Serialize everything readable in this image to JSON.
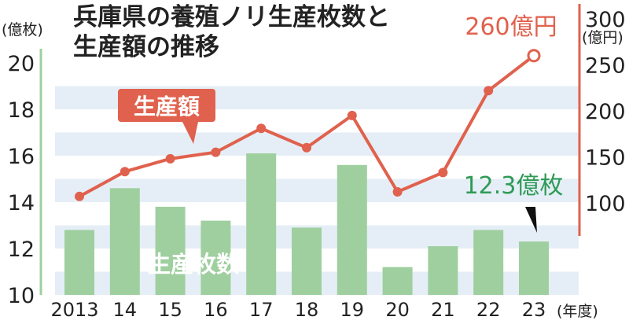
{
  "chart_data": {
    "type": "bar+line",
    "title_line1": "兵庫県の養殖ノリ生産枚数と",
    "title_line2": "生産額の推移",
    "x_unit": "(年度)",
    "categories": [
      "2013",
      "14",
      "15",
      "16",
      "17",
      "18",
      "19",
      "20",
      "21",
      "22",
      "23"
    ],
    "left_axis": {
      "unit": "(億枚)",
      "ylim": [
        10,
        21
      ],
      "ticks": [
        "10",
        "12",
        "14",
        "16",
        "18",
        "20"
      ]
    },
    "right_axis": {
      "unit": "(億円)",
      "ylim": [
        78,
        300
      ],
      "ticks": [
        "100",
        "150",
        "200",
        "250",
        "300"
      ]
    },
    "series": [
      {
        "name": "生産枚数",
        "kind": "bar",
        "axis": "left",
        "color": "#9fcf9f",
        "values": [
          12.8,
          14.6,
          13.8,
          13.2,
          16.1,
          12.9,
          15.6,
          11.2,
          12.1,
          12.8,
          12.3
        ]
      },
      {
        "name": "生産額",
        "kind": "line",
        "axis": "right",
        "color": "#e0614d",
        "values": [
          107,
          134,
          148,
          155,
          181,
          160,
          195,
          112,
          133,
          222,
          260
        ]
      }
    ],
    "annotations": {
      "line_last": "260億円",
      "bar_last": "12.3億枚"
    },
    "grid": "horizontal bands",
    "colors": {
      "band": "#e5eef6",
      "line": "#e0614d",
      "bar": "#9fcf9f",
      "bar_label": "#2e9a55",
      "right_axis": "#e0614d"
    }
  }
}
